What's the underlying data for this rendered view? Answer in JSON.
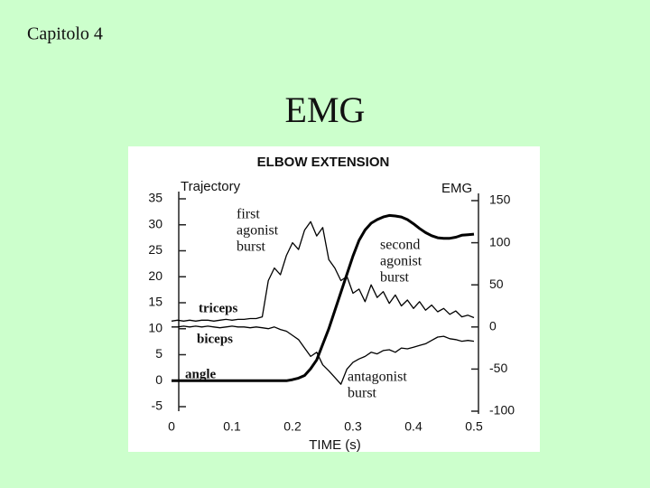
{
  "slide": {
    "header": "Capitolo 4",
    "title": "EMG"
  },
  "chart_data": {
    "type": "line",
    "title": "ELBOW EXTENSION",
    "ylabel": "Trajectory",
    "y2label": "EMG",
    "xlabel": "TIME (s)",
    "x": [
      0,
      0.01,
      0.02,
      0.03,
      0.04,
      0.05,
      0.06,
      0.07,
      0.08,
      0.09,
      0.1,
      0.11,
      0.12,
      0.13,
      0.14,
      0.15,
      0.16,
      0.17,
      0.18,
      0.19,
      0.2,
      0.21,
      0.22,
      0.23,
      0.24,
      0.25,
      0.26,
      0.27,
      0.28,
      0.29,
      0.3,
      0.31,
      0.32,
      0.33,
      0.34,
      0.35,
      0.36,
      0.37,
      0.38,
      0.39,
      0.4,
      0.41,
      0.42,
      0.43,
      0.44,
      0.45,
      0.46,
      0.47,
      0.48,
      0.49,
      0.5
    ],
    "series": [
      {
        "name": "triceps",
        "color": "#000000",
        "axis": "y2",
        "values": [
          7,
          8,
          7,
          8,
          7,
          8,
          8,
          7,
          8,
          9,
          8,
          9,
          9,
          10,
          10,
          12,
          55,
          70,
          62,
          85,
          100,
          92,
          115,
          125,
          108,
          118,
          80,
          70,
          55,
          60,
          40,
          45,
          30,
          50,
          35,
          42,
          28,
          38,
          25,
          32,
          22,
          30,
          20,
          26,
          18,
          22,
          15,
          19,
          12,
          14,
          11
        ]
      },
      {
        "name": "biceps",
        "color": "#000000",
        "axis": "y2",
        "values": [
          0,
          0,
          1,
          0,
          1,
          0,
          1,
          0,
          -1,
          0,
          1,
          0,
          0,
          -1,
          0,
          -1,
          -2,
          0,
          -3,
          -5,
          -10,
          -15,
          -25,
          -35,
          -30,
          -45,
          -52,
          -60,
          -68,
          -50,
          -42,
          -38,
          -35,
          -30,
          -32,
          -28,
          -27,
          -30,
          -25,
          -26,
          -24,
          -22,
          -20,
          -16,
          -12,
          -11,
          -14,
          -15,
          -17,
          -16,
          -17
        ]
      },
      {
        "name": "angle",
        "color": "#000000",
        "values": [
          0,
          0,
          0,
          0,
          0,
          0,
          0,
          0,
          0,
          0,
          0,
          0,
          0,
          0,
          0,
          0,
          0,
          0,
          0,
          0,
          0.2,
          0.5,
          1,
          2.3,
          4,
          7,
          10,
          13.5,
          17,
          20.5,
          24,
          27,
          29,
          30.3,
          31,
          31.5,
          31.8,
          31.7,
          31.5,
          31,
          30.2,
          29.3,
          28.5,
          27.9,
          27.5,
          27.4,
          27.4,
          27.6,
          28,
          28.1,
          28.2
        ]
      }
    ],
    "annotations": [
      [
        "first",
        "agonist",
        "burst"
      ],
      [
        "second",
        "agonist",
        "burst"
      ],
      [
        "antagonist",
        "burst"
      ]
    ],
    "xlim": [
      0,
      0.5
    ],
    "xticks": [
      0,
      0.1,
      0.2,
      0.3,
      0.4,
      0.5
    ],
    "ylim": [
      -5,
      35
    ],
    "yticks": [
      -5,
      0,
      5,
      10,
      15,
      20,
      25,
      30,
      35
    ],
    "y2lim": [
      -100,
      150
    ],
    "y2ticks": [
      -100,
      -50,
      0,
      50,
      100,
      150
    ]
  }
}
